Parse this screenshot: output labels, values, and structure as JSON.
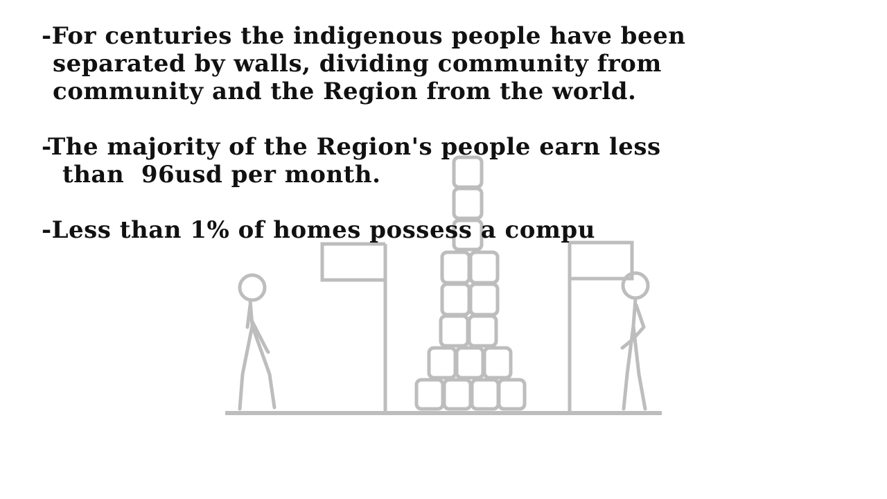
{
  "bullets": [
    {
      "lines": [
        "-For centuries the indigenous people have been",
        "separated by walls, dividing community from",
        "community and the Region from the world."
      ]
    },
    {
      "lines": [
        "-The majority of the Region's people earn less",
        "than  96usd per month."
      ]
    },
    {
      "lines": [
        "-Less than 1% of homes possess a compu"
      ]
    }
  ],
  "illustration": {
    "stroke_color": "#bdbdbd",
    "elements": [
      "left-stick-figure",
      "left-flag",
      "block-tower",
      "right-flag",
      "right-stick-figure",
      "ground-line"
    ]
  }
}
